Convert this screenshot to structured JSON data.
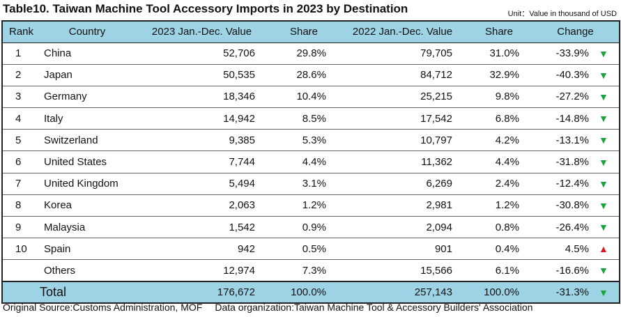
{
  "title": "Table10. Taiwan Machine Tool Accessory Imports in 2023 by Destination",
  "unit": "Unit：Value in thousand of USD",
  "headers": {
    "rank": "Rank",
    "country": "Country",
    "v2023": "2023 Jan.-Dec. Value",
    "share2023": "Share",
    "v2022": "2022 Jan.-Dec. Value",
    "share2022": "Share",
    "change": "Change"
  },
  "rows": [
    {
      "rank": "1",
      "country": "China",
      "v2023": "52,706",
      "share2023": "29.8%",
      "v2022": "79,705",
      "share2022": "31.0%",
      "change": "-33.9%",
      "arrow": "▼",
      "dir": "down"
    },
    {
      "rank": "2",
      "country": "Japan",
      "v2023": "50,535",
      "share2023": "28.6%",
      "v2022": "84,712",
      "share2022": "32.9%",
      "change": "-40.3%",
      "arrow": "▼",
      "dir": "down"
    },
    {
      "rank": "3",
      "country": "Germany",
      "v2023": "18,346",
      "share2023": "10.4%",
      "v2022": "25,215",
      "share2022": "9.8%",
      "change": "-27.2%",
      "arrow": "▼",
      "dir": "down"
    },
    {
      "rank": "4",
      "country": "Italy",
      "v2023": "14,942",
      "share2023": "8.5%",
      "v2022": "17,542",
      "share2022": "6.8%",
      "change": "-14.8%",
      "arrow": "▼",
      "dir": "down"
    },
    {
      "rank": "5",
      "country": "Switzerland",
      "v2023": "9,385",
      "share2023": "5.3%",
      "v2022": "10,797",
      "share2022": "4.2%",
      "change": "-13.1%",
      "arrow": "▼",
      "dir": "down"
    },
    {
      "rank": "6",
      "country": "United States",
      "v2023": "7,744",
      "share2023": "4.4%",
      "v2022": "11,362",
      "share2022": "4.4%",
      "change": "-31.8%",
      "arrow": "▼",
      "dir": "down"
    },
    {
      "rank": "7",
      "country": "United Kingdom",
      "v2023": "5,494",
      "share2023": "3.1%",
      "v2022": "6,269",
      "share2022": "2.4%",
      "change": "-12.4%",
      "arrow": "▼",
      "dir": "down"
    },
    {
      "rank": "8",
      "country": "Korea",
      "v2023": "2,063",
      "share2023": "1.2%",
      "v2022": "2,981",
      "share2022": "1.2%",
      "change": "-30.8%",
      "arrow": "▼",
      "dir": "down"
    },
    {
      "rank": "9",
      "country": "Malaysia",
      "v2023": "1,542",
      "share2023": "0.9%",
      "v2022": "2,094",
      "share2022": "0.8%",
      "change": "-26.4%",
      "arrow": "▼",
      "dir": "down"
    },
    {
      "rank": "10",
      "country": "Spain",
      "v2023": "942",
      "share2023": "0.5%",
      "v2022": "901",
      "share2022": "0.4%",
      "change": "4.5%",
      "arrow": "▲",
      "dir": "up"
    },
    {
      "rank": "",
      "country": "Others",
      "v2023": "12,974",
      "share2023": "7.3%",
      "v2022": "15,566",
      "share2022": "6.1%",
      "change": "-16.6%",
      "arrow": "▼",
      "dir": "down"
    }
  ],
  "total": {
    "label": "Total",
    "v2023": "176,672",
    "share2023": "100.0%",
    "v2022": "257,143",
    "share2022": "100.0%",
    "change": "-31.3%",
    "arrow": "▼",
    "dir": "down"
  },
  "source": {
    "original": "Original Source:Customs Administration, MOF",
    "organization": "Data organization:Taiwan Machine Tool & Accessory Builders' Association"
  },
  "colors": {
    "header_bg": "#9dd3e4",
    "down": "#1aa33a",
    "up": "#e0161e"
  }
}
